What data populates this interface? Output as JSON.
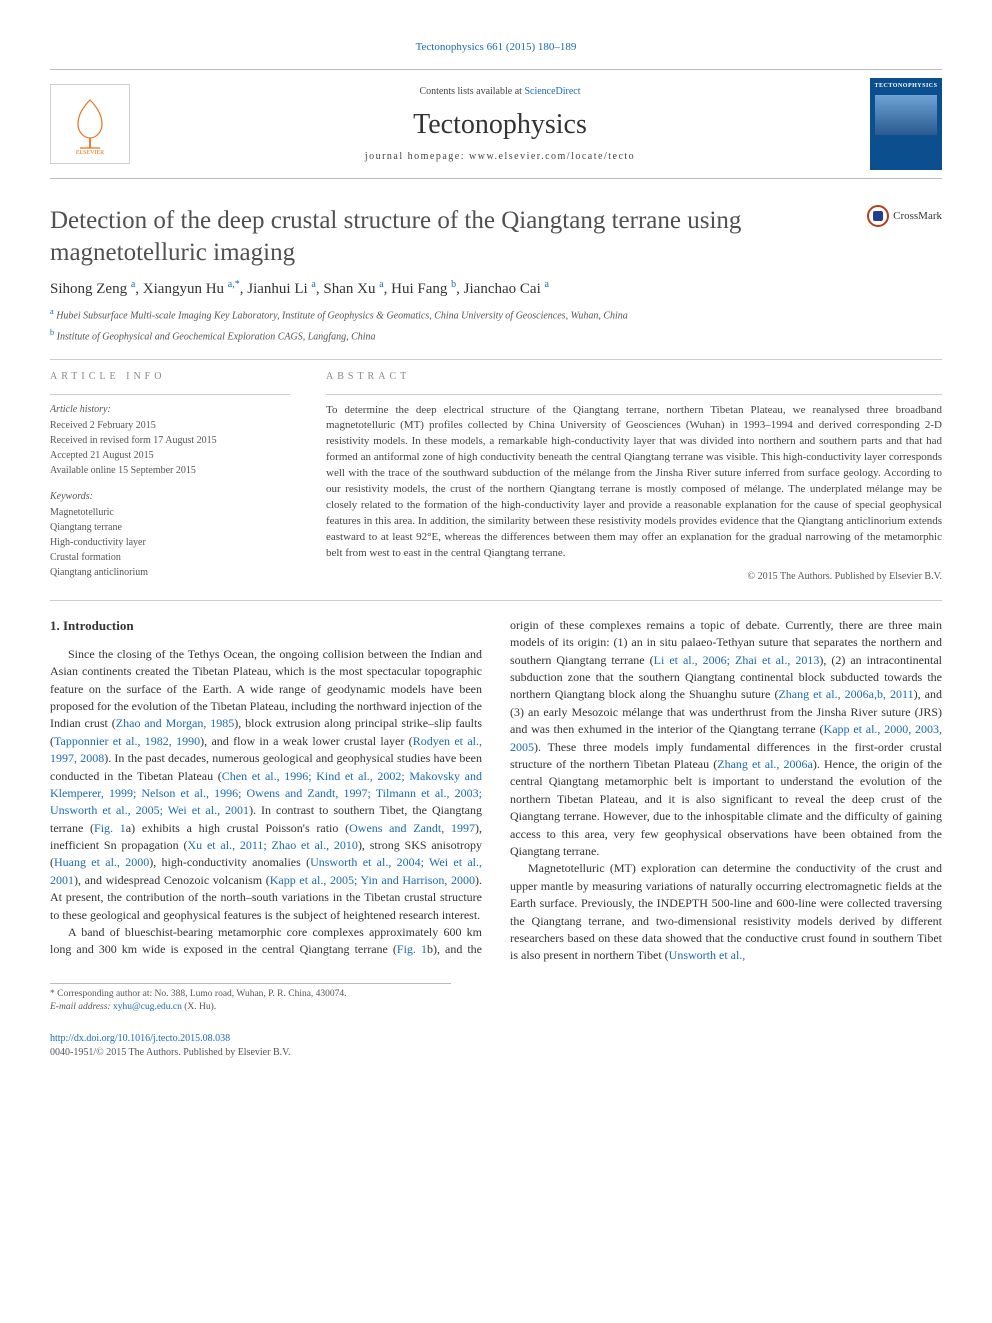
{
  "journal_ref": {
    "journal": "Tectonophysics",
    "vol_pages": "661 (2015) 180–189"
  },
  "header": {
    "contents_prefix": "Contents lists available at ",
    "contents_link": "ScienceDirect",
    "journal_name": "Tectonophysics",
    "homepage_prefix": "journal homepage: ",
    "homepage": "www.elsevier.com/locate/tecto",
    "cover_label": "TECTONOPHYSICS"
  },
  "article": {
    "title": "Detection of the deep crustal structure of the Qiangtang terrane using magnetotelluric imaging",
    "crossmark_label": "CrossMark",
    "authors_html": "Sihong Zeng <sup>a</sup>, Xiangyun Hu <sup>a,*</sup>, Jianhui Li <sup>a</sup>, Shan Xu <sup>a</sup>, Hui Fang <sup>b</sup>, Jianchao Cai <sup>a</sup>",
    "affiliations": [
      {
        "sup": "a",
        "text": "Hubei Subsurface Multi-scale Imaging Key Laboratory, Institute of Geophysics & Geomatics, China University of Geosciences, Wuhan, China"
      },
      {
        "sup": "b",
        "text": "Institute of Geophysical and Geochemical Exploration CAGS, Langfang, China"
      }
    ]
  },
  "meta": {
    "info_heading": "ARTICLE INFO",
    "abstract_heading": "ABSTRACT",
    "history_label": "Article history:",
    "history": [
      "Received 2 February 2015",
      "Received in revised form 17 August 2015",
      "Accepted 21 August 2015",
      "Available online 15 September 2015"
    ],
    "keywords_label": "Keywords:",
    "keywords": [
      "Magnetotelluric",
      "Qiangtang terrane",
      "High-conductivity layer",
      "Crustal formation",
      "Qiangtang anticlinorium"
    ],
    "abstract": "To determine the deep electrical structure of the Qiangtang terrane, northern Tibetan Plateau, we reanalysed three broadband magnetotelluric (MT) profiles collected by China University of Geosciences (Wuhan) in 1993–1994 and derived corresponding 2-D resistivity models. In these models, a remarkable high-conductivity layer that was divided into northern and southern parts and that had formed an antiformal zone of high conductivity beneath the central Qiangtang terrane was visible. This high-conductivity layer corresponds well with the trace of the southward subduction of the mélange from the Jinsha River suture inferred from surface geology. According to our resistivity models, the crust of the northern Qiangtang terrane is mostly composed of mélange. The underplated mélange may be closely related to the formation of the high-conductivity layer and provide a reasonable explanation for the cause of special geophysical features in this area. In addition, the similarity between these resistivity models provides evidence that the Qiangtang anticlinorium extends eastward to at least 92°E, whereas the differences between them may offer an explanation for the gradual narrowing of the metamorphic belt from west to east in the central Qiangtang terrane.",
    "copyright": "© 2015 The Authors. Published by Elsevier B.V."
  },
  "body": {
    "section_number": "1.",
    "section_title": "Introduction",
    "p1_pre": "Since the closing of the Tethys Ocean, the ongoing collision between the Indian and Asian continents created the Tibetan Plateau, which is the most spectacular topographic feature on the surface of the Earth. A wide range of geodynamic models have been proposed for the evolution of the Tibetan Plateau, including the northward injection of the Indian crust (",
    "ref_zhao_morgan": "Zhao and Morgan, 1985",
    "p1_mid1": "), block extrusion along principal strike–slip faults (",
    "ref_tapponnier": "Tapponnier et al., 1982, 1990",
    "p1_mid2": "), and flow in a weak lower crustal layer (",
    "ref_rodyen": "Rodyen et al., 1997, 2008",
    "p1_mid3": "). In the past decades, numerous geological and geophysical studies have been conducted in the Tibetan Plateau (",
    "ref_plateau": "Chen et al., 1996; Kind et al., 2002; Makovsky and Klemperer, 1999; Nelson et al., 1996; Owens and Zandt, 1997; Tilmann et al., 2003; Unsworth et al., 2005; Wei et al., 2001",
    "p1_mid4": "). In contrast to southern Tibet, the Qiangtang terrane (",
    "ref_fig1a": "Fig. 1",
    "p1_mid5": "a) exhibits a high crustal Poisson's ratio (",
    "ref_owens": "Owens and Zandt, 1997",
    "p1_mid6": "), inefficient Sn propagation (",
    "ref_xu": "Xu et al., 2011; Zhao et al., 2010",
    "p1_mid7": "), strong SKS anisotropy (",
    "ref_huang": "Huang et al., 2000",
    "p1_mid8": "), high-conductivity anomalies (",
    "ref_unsworth": "Unsworth et al., 2004; Wei et al., 2001",
    "p1_mid9": "), and widespread Cenozoic volcanism (",
    "ref_kapp": "Kapp et al., 2005; Yin and Harrison, 2000",
    "p1_post": "). At present, the contribution of the north–south variations in the Tibetan crustal structure to these geological and geophysical features is the subject of heightened research interest.",
    "p2_pre": "A band of blueschist-bearing metamorphic core complexes approximately 600 km long and 300 km wide is exposed in the central Qiangtang terrane (",
    "ref_fig1b": "Fig. 1",
    "p2_mid1": "b), and the origin of these complexes remains a topic of debate. Currently, there are three main models of its origin: (1) an in situ palaeo-Tethyan suture that separates the northern and southern Qiangtang terrane (",
    "ref_li": "Li et al., 2006; Zhai et al., 2013",
    "p2_mid2": "), (2) an intracontinental subduction zone that the southern Qiangtang continental block subducted towards the northern Qiangtang block along the Shuanghu suture (",
    "ref_zhang_ab": "Zhang et al., 2006a,b, 2011",
    "p2_mid3": "), and (3) an early Mesozoic mélange that was underthrust from the Jinsha River suture (JRS) and was then exhumed in the interior of the Qiangtang terrane (",
    "ref_kapp2": "Kapp et al., 2000, 2003, 2005",
    "p2_mid4": "). These three models imply fundamental differences in the first-order crustal structure of the northern Tibetan Plateau (",
    "ref_zhang_a": "Zhang et al., 2006a",
    "p2_post": "). Hence, the origin of the central Qiangtang metamorphic belt is important to understand the evolution of the northern Tibetan Plateau, and it is also significant to reveal the deep crust of the Qiangtang terrane. However, due to the inhospitable climate and the difficulty of gaining access to this area, very few geophysical observations have been obtained from the Qiangtang terrane.",
    "p3_pre": "Magnetotelluric (MT) exploration can determine the conductivity of the crust and upper mantle by measuring variations of naturally occurring electromagnetic fields at the Earth surface. Previously, the INDEPTH 500-line and 600-line were collected traversing the Qiangtang terrane, and two-dimensional resistivity models derived by different researchers based on these data showed that the conductive crust found in southern Tibet is also present in northern Tibet (",
    "ref_unsworth2": "Unsworth et al.,"
  },
  "footnote": {
    "corr": "* Corresponding author at: No. 388, Lumo road, Wuhan, P. R. China, 430074.",
    "email_label": "E-mail address: ",
    "email": "xyhu@cug.edu.cn",
    "email_suffix": " (X. Hu)."
  },
  "footer": {
    "doi": "http://dx.doi.org/10.1016/j.tecto.2015.08.038",
    "issn_line": "0040-1951/© 2015 The Authors. Published by Elsevier B.V."
  },
  "colors": {
    "link": "#1a6bb3",
    "text": "#333333",
    "muted": "#555555",
    "cover_bg": "#0b4f8f",
    "elsevier_orange": "#e9711c"
  }
}
